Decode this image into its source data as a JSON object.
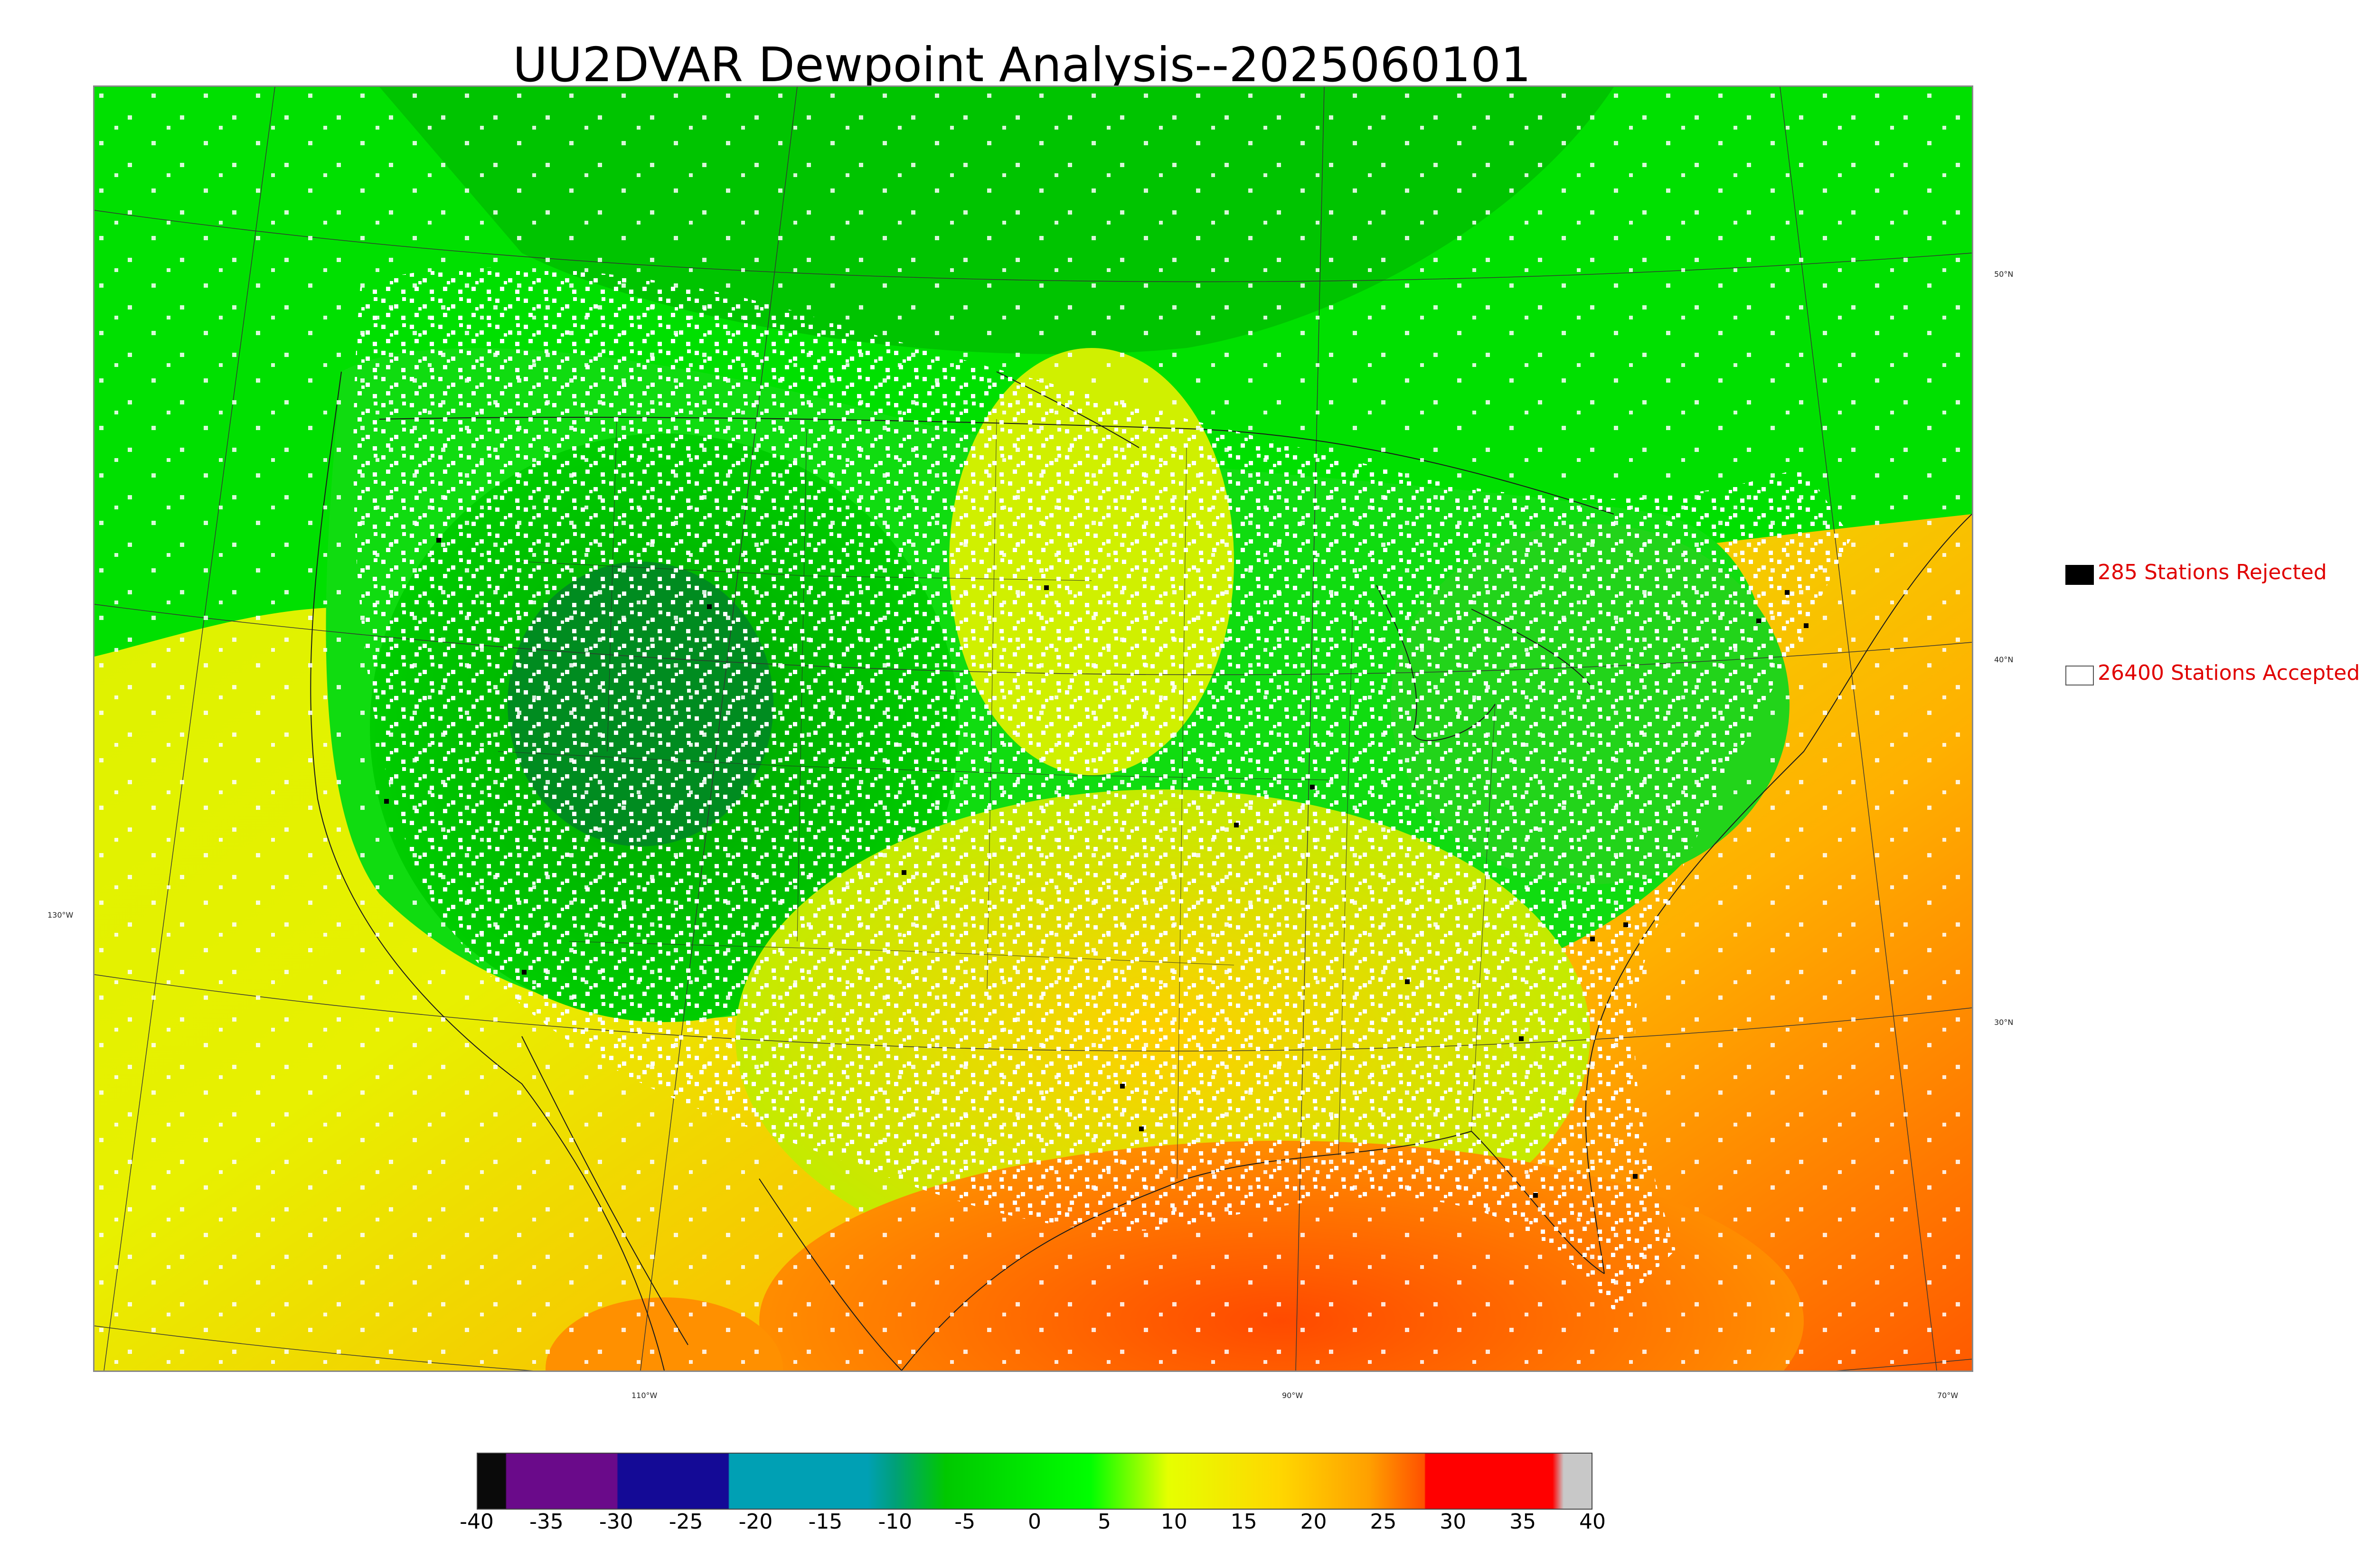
{
  "title": "UU2DVAR Dewpoint Analysis--2025060101",
  "map": {
    "lat_labels": [
      "50°N",
      "40°N",
      "30°N",
      "130°W"
    ],
    "lon_labels": [
      "110°W",
      "90°W",
      "70°W"
    ]
  },
  "legend": {
    "rejected": {
      "label": "285 Stations Rejected",
      "swatch_color": "#000000"
    },
    "accepted": {
      "label": "26400 Stations Accepted",
      "swatch_color": "#ffffff"
    }
  },
  "colorbar": {
    "ticks": [
      "-40",
      "-35",
      "-30",
      "-25",
      "-20",
      "-15",
      "-10",
      "-5",
      "0",
      "5",
      "10",
      "15",
      "20",
      "25",
      "30",
      "35",
      "40"
    ],
    "range": [
      -40,
      40
    ],
    "colors": [
      "#0a0a0a",
      "#6a0a8a",
      "#140a96",
      "#00a0b4",
      "#00a078",
      "#00c800",
      "#00ff00",
      "#e6ff00",
      "#ffd700",
      "#ffa000",
      "#ff5000",
      "#ff0000",
      "#c8c8c8"
    ]
  }
}
